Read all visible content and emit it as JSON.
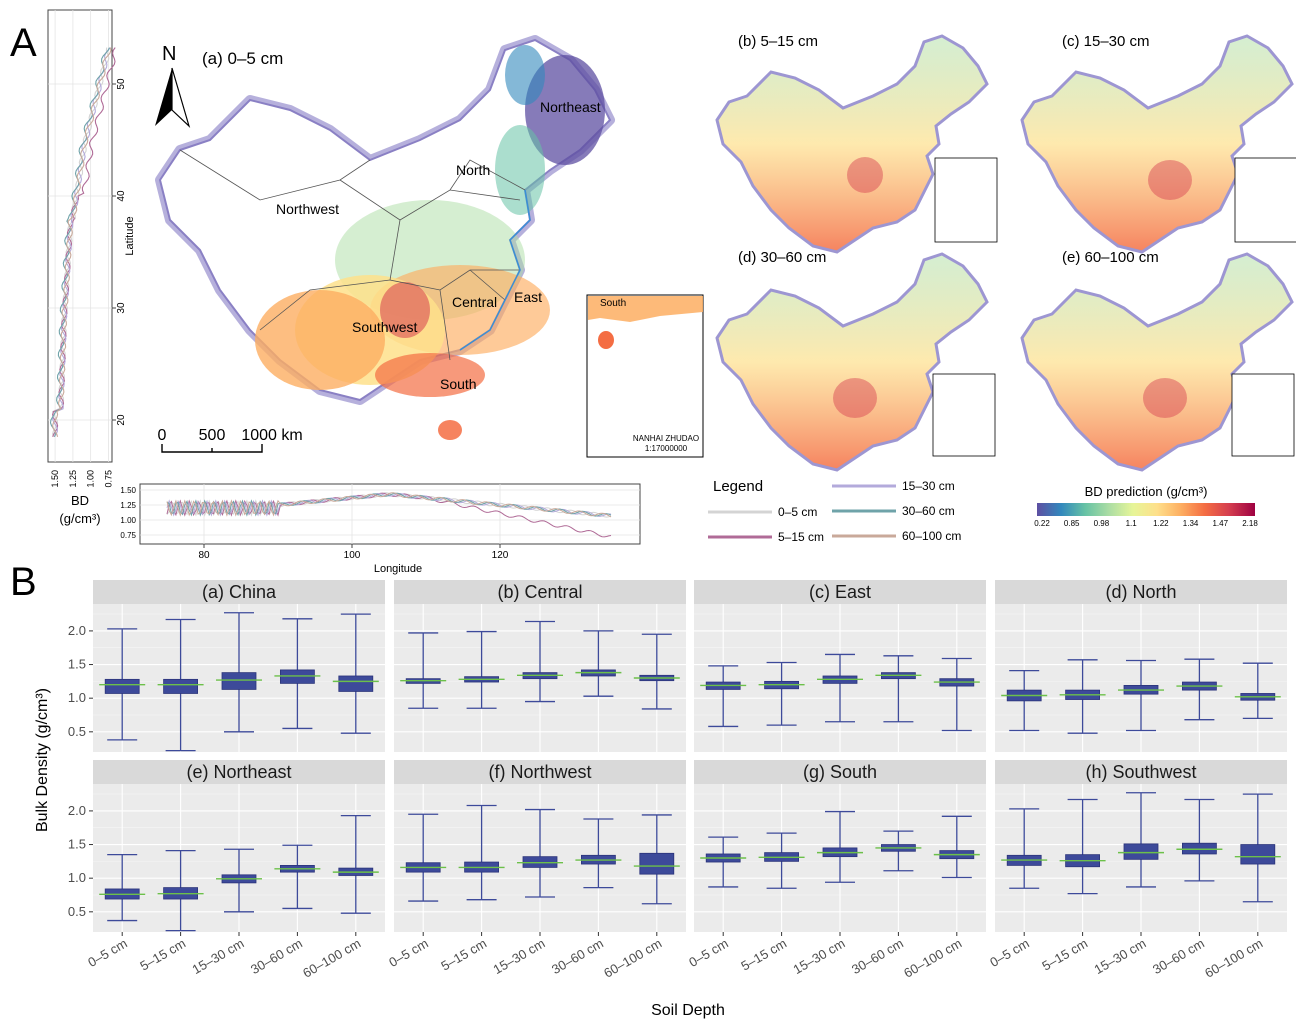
{
  "panel_labels": {
    "a": "A",
    "b": "B"
  },
  "maps": {
    "main_title": "(a) 0–5 cm",
    "north_arrow": "N",
    "regions": [
      "Northeast",
      "North",
      "Northwest",
      "Central",
      "East",
      "Southwest",
      "South"
    ],
    "scalebar": [
      "0",
      "500",
      "1000 km"
    ],
    "inset_label": "South",
    "inset_caption": [
      "NANHAI ZHUDAO",
      "1:17000000"
    ],
    "small_titles": [
      "(b) 5–15 cm",
      "(c) 15–30 cm",
      "(d) 30–60 cm",
      "(e) 60–100 cm"
    ]
  },
  "lat_profile": {
    "ylabel": "Latitude",
    "xlabel": "BD\n(g/cm³)",
    "yticks": [
      "20",
      "30",
      "40",
      "50"
    ],
    "xticks": [
      "1.50",
      "1.25",
      "1.00",
      "0.75"
    ]
  },
  "lon_profile": {
    "xlabel": "Longitude",
    "xticks": [
      "80",
      "100",
      "120"
    ],
    "yticks": [
      "1.50",
      "1.25",
      "1.00",
      "0.75"
    ]
  },
  "legend": {
    "title": "Legend",
    "items": [
      {
        "label": "0–5 cm",
        "color": "#d4d4d4"
      },
      {
        "label": "5–15 cm",
        "color": "#b06b97"
      },
      {
        "label": "15–30 cm",
        "color": "#b3aadb"
      },
      {
        "label": "30–60 cm",
        "color": "#6fa3a9"
      },
      {
        "label": "60–100 cm",
        "color": "#c9a99a"
      }
    ]
  },
  "colorbar": {
    "title": "BD prediction (g/cm³)",
    "ticks": [
      "0.22",
      "0.85",
      "0.98",
      "1.1",
      "1.22",
      "1.34",
      "1.47",
      "2.18"
    ],
    "colors": [
      "#5e4fa2",
      "#3288bd",
      "#66c2a5",
      "#abdda4",
      "#e6f598",
      "#fee08b",
      "#fdae61",
      "#f46d43",
      "#d53e4f",
      "#9e0142"
    ]
  },
  "chart_data": {
    "type": "box",
    "ylabel": "Bulk Density (g/cm³)",
    "xlabel": "Soil Depth",
    "yticks": [
      "0.5",
      "1.0",
      "1.5",
      "2.0"
    ],
    "ylim": [
      0.2,
      2.4
    ],
    "categories": [
      "0–5 cm",
      "5–15 cm",
      "15–30 cm",
      "30–60 cm",
      "60–100 cm"
    ],
    "box_color": "#3d4a9a",
    "median_color": "#6cc04a",
    "panels": [
      {
        "title": "(a) China",
        "boxes": [
          [
            0.38,
            1.07,
            1.2,
            1.28,
            2.03
          ],
          [
            0.22,
            1.07,
            1.2,
            1.28,
            2.17
          ],
          [
            0.5,
            1.13,
            1.27,
            1.38,
            2.27
          ],
          [
            0.55,
            1.22,
            1.33,
            1.42,
            2.18
          ],
          [
            0.48,
            1.1,
            1.25,
            1.33,
            2.25
          ]
        ]
      },
      {
        "title": "(b) Central",
        "boxes": [
          [
            0.85,
            1.22,
            1.26,
            1.29,
            1.97
          ],
          [
            0.85,
            1.24,
            1.28,
            1.32,
            1.99
          ],
          [
            0.95,
            1.29,
            1.34,
            1.38,
            2.14
          ],
          [
            1.03,
            1.33,
            1.38,
            1.42,
            2.0
          ],
          [
            0.84,
            1.26,
            1.3,
            1.34,
            1.95
          ]
        ]
      },
      {
        "title": "(c) East",
        "boxes": [
          [
            0.58,
            1.13,
            1.19,
            1.24,
            1.48
          ],
          [
            0.6,
            1.14,
            1.2,
            1.25,
            1.53
          ],
          [
            0.65,
            1.22,
            1.28,
            1.33,
            1.65
          ],
          [
            0.65,
            1.29,
            1.34,
            1.38,
            1.63
          ],
          [
            0.52,
            1.18,
            1.24,
            1.29,
            1.59
          ]
        ]
      },
      {
        "title": "(d) North",
        "boxes": [
          [
            0.52,
            0.96,
            1.04,
            1.12,
            1.41
          ],
          [
            0.48,
            0.98,
            1.05,
            1.12,
            1.57
          ],
          [
            0.52,
            1.06,
            1.12,
            1.19,
            1.56
          ],
          [
            0.68,
            1.12,
            1.18,
            1.24,
            1.58
          ],
          [
            0.7,
            0.97,
            1.02,
            1.07,
            1.52
          ]
        ]
      },
      {
        "title": "(e) Northeast",
        "boxes": [
          [
            0.37,
            0.69,
            0.76,
            0.84,
            1.35
          ],
          [
            0.22,
            0.69,
            0.77,
            0.86,
            1.41
          ],
          [
            0.5,
            0.93,
            0.99,
            1.05,
            1.43
          ],
          [
            0.55,
            1.09,
            1.14,
            1.19,
            1.49
          ],
          [
            0.48,
            1.04,
            1.09,
            1.15,
            1.93
          ]
        ]
      },
      {
        "title": "(f) Northwest",
        "boxes": [
          [
            0.66,
            1.09,
            1.16,
            1.23,
            1.95
          ],
          [
            0.68,
            1.09,
            1.16,
            1.24,
            2.08
          ],
          [
            0.72,
            1.16,
            1.23,
            1.32,
            2.02
          ],
          [
            0.86,
            1.21,
            1.27,
            1.34,
            1.88
          ],
          [
            0.62,
            1.06,
            1.18,
            1.37,
            1.94
          ]
        ]
      },
      {
        "title": "(g) South",
        "boxes": [
          [
            0.87,
            1.24,
            1.3,
            1.36,
            1.61
          ],
          [
            0.85,
            1.25,
            1.31,
            1.38,
            1.67
          ],
          [
            0.94,
            1.32,
            1.38,
            1.45,
            1.99
          ],
          [
            1.11,
            1.4,
            1.45,
            1.5,
            1.7
          ],
          [
            1.01,
            1.29,
            1.35,
            1.41,
            1.92
          ]
        ]
      },
      {
        "title": "(h) Southwest",
        "boxes": [
          [
            0.85,
            1.19,
            1.27,
            1.34,
            2.03
          ],
          [
            0.77,
            1.17,
            1.26,
            1.35,
            2.17
          ],
          [
            0.87,
            1.28,
            1.38,
            1.51,
            2.27
          ],
          [
            0.96,
            1.36,
            1.43,
            1.52,
            2.17
          ],
          [
            0.65,
            1.21,
            1.32,
            1.5,
            2.25
          ]
        ]
      }
    ]
  }
}
